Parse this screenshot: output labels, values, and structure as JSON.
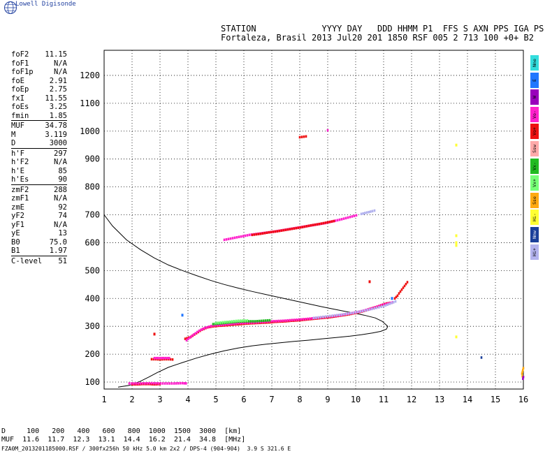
{
  "logo": {
    "text": "Lowell Digisonde",
    "icon": "globe-icon"
  },
  "header": {
    "line1": "STATION             YYYY DAY   DDD HHMM P1  FFS S AXN PPS IGA PS",
    "line2": "Fortaleza, Brasil 2013 Jul20 201 1850 RSF 005 2 713 100 +0+ B2"
  },
  "params": [
    [
      {
        "k": "foF2",
        "v": "11.15"
      },
      {
        "k": "foF1",
        "v": "N/A"
      },
      {
        "k": "foF1p",
        "v": "N/A"
      },
      {
        "k": "foE",
        "v": "2.91"
      },
      {
        "k": "foEp",
        "v": "2.75"
      },
      {
        "k": "fxI",
        "v": "11.55"
      },
      {
        "k": "foEs",
        "v": "3.25"
      },
      {
        "k": "fmin",
        "v": "1.85"
      }
    ],
    [
      {
        "k": "MUF",
        "v": "34.78"
      },
      {
        "k": "M",
        "v": "3.119"
      },
      {
        "k": "D",
        "v": "3000"
      }
    ],
    [
      {
        "k": "h'F",
        "v": "297"
      },
      {
        "k": "h'F2",
        "v": "N/A"
      },
      {
        "k": "h'E",
        "v": "85"
      },
      {
        "k": "h'Es",
        "v": "90"
      }
    ],
    [
      {
        "k": "zmF2",
        "v": "288"
      },
      {
        "k": "zmF1",
        "v": "N/A"
      },
      {
        "k": "zmE",
        "v": "92"
      },
      {
        "k": "yF2",
        "v": "74"
      },
      {
        "k": "yF1",
        "v": "N/A"
      },
      {
        "k": "yE",
        "v": "13"
      },
      {
        "k": "B0",
        "v": "75.0"
      },
      {
        "k": "B1",
        "v": "1.97"
      }
    ],
    [
      {
        "k": "C-level",
        "v": "51"
      }
    ]
  ],
  "legend": [
    {
      "label": "Nne",
      "color": "#33dddd"
    },
    {
      "label": "E",
      "color": "#2277ff"
    },
    {
      "label": "W",
      "color": "#9900bb"
    },
    {
      "label": "Vo-",
      "color": "#ff22cc"
    },
    {
      "label": "Vo+",
      "color": "#ee1111"
    },
    {
      "label": "Ssw",
      "color": "#ffaaaa"
    },
    {
      "label": "Vx-",
      "color": "#22bb22"
    },
    {
      "label": "Vx+",
      "color": "#77ff77"
    },
    {
      "label": "Sse",
      "color": "#ffaa11"
    },
    {
      "label": "Hi-",
      "color": "#ffff33"
    },
    {
      "label": "Nnw",
      "color": "#1a3f9a"
    },
    {
      "label": "Hi+",
      "color": "#b3b3ee"
    }
  ],
  "footer": {
    "line1": "D     100   200   400   600   800  1000  1500  3000  [km]",
    "line2": "MUF  11.6  11.7  12.3  13.1  14.4  16.2  21.4  34.8  [MHz]",
    "line3": "FZA0M_2013201185000.RSF / 300fx256h 50 kHz 5.0 km 2x2 / DPS-4 (904-904)  3.9 S 321.6 E"
  },
  "chart_data": {
    "type": "scatter",
    "title": "",
    "xlabel": "",
    "ylabel": "",
    "xlim": [
      1,
      16
    ],
    "ylim": [
      75,
      1290
    ],
    "grid": true,
    "x_ticks": [
      1,
      2,
      3,
      4,
      5,
      6,
      7,
      8,
      9,
      10,
      11,
      12,
      13,
      14,
      15,
      16
    ],
    "y_ticks": [
      100,
      200,
      300,
      400,
      500,
      600,
      700,
      800,
      900,
      1000,
      1100,
      1200
    ],
    "profile": [
      [
        1.0,
        700
      ],
      [
        1.3,
        660
      ],
      [
        1.8,
        610
      ],
      [
        2.3,
        575
      ],
      [
        2.8,
        545
      ],
      [
        3.3,
        520
      ],
      [
        3.8,
        500
      ],
      [
        4.3,
        482
      ],
      [
        4.8,
        465
      ],
      [
        5.3,
        450
      ],
      [
        5.8,
        437
      ],
      [
        6.3,
        425
      ],
      [
        6.8,
        414
      ],
      [
        7.3,
        403
      ],
      [
        7.8,
        392
      ],
      [
        8.3,
        381
      ],
      [
        8.8,
        370
      ],
      [
        9.3,
        360
      ],
      [
        9.8,
        350
      ],
      [
        10.3,
        340
      ],
      [
        10.7,
        330
      ],
      [
        10.95,
        318
      ],
      [
        11.15,
        300
      ],
      [
        11.1,
        290
      ],
      [
        10.9,
        282
      ],
      [
        10.6,
        276
      ],
      [
        10.2,
        270
      ],
      [
        9.8,
        265
      ],
      [
        9.3,
        260
      ],
      [
        8.8,
        255
      ],
      [
        8.3,
        250
      ],
      [
        7.8,
        246
      ],
      [
        7.3,
        241
      ],
      [
        6.8,
        236
      ],
      [
        6.3,
        230
      ],
      [
        5.8,
        222
      ],
      [
        5.3,
        212
      ],
      [
        4.8,
        200
      ],
      [
        4.3,
        186
      ],
      [
        3.8,
        170
      ],
      [
        3.3,
        153
      ],
      [
        2.9,
        134
      ],
      [
        2.6,
        118
      ],
      [
        2.3,
        103
      ],
      [
        1.9,
        88
      ],
      [
        1.5,
        82
      ]
    ],
    "traces": [
      {
        "color": "#ee1111",
        "points": [
          [
            2.0,
            92
          ],
          [
            2.2,
            92
          ],
          [
            2.4,
            93
          ],
          [
            2.6,
            93
          ],
          [
            2.8,
            92
          ],
          [
            3.0,
            93
          ],
          [
            3.1,
            92
          ]
        ]
      },
      {
        "color": "#ff22cc",
        "points": [
          [
            1.9,
            95
          ],
          [
            2.3,
            95
          ],
          [
            2.7,
            96
          ],
          [
            3.1,
            95
          ],
          [
            3.5,
            95
          ],
          [
            3.8,
            96
          ],
          [
            4.0,
            95
          ]
        ]
      },
      {
        "color": "#ee1111",
        "points": [
          [
            2.7,
            182
          ],
          [
            2.85,
            182
          ],
          [
            3.0,
            181
          ],
          [
            3.15,
            182
          ],
          [
            3.3,
            182
          ],
          [
            3.45,
            181
          ],
          [
            3.55,
            182
          ]
        ]
      },
      {
        "color": "#ff22cc",
        "points": [
          [
            2.8,
            186
          ],
          [
            3.0,
            186
          ],
          [
            3.2,
            186
          ],
          [
            3.4,
            186
          ]
        ]
      },
      {
        "color": "#ee1111",
        "points": [
          [
            3.9,
            255
          ],
          [
            4.1,
            262
          ],
          [
            4.3,
            275
          ],
          [
            4.5,
            288
          ],
          [
            4.7,
            296
          ],
          [
            4.9,
            300
          ],
          [
            5.1,
            302
          ],
          [
            5.3,
            303
          ],
          [
            5.5,
            305
          ],
          [
            5.7,
            307
          ],
          [
            5.9,
            308
          ],
          [
            6.1,
            310
          ],
          [
            6.3,
            311
          ],
          [
            6.5,
            312
          ],
          [
            6.7,
            313
          ],
          [
            6.9,
            314
          ],
          [
            7.1,
            316
          ],
          [
            7.3,
            317
          ],
          [
            7.5,
            318
          ],
          [
            7.7,
            320
          ],
          [
            7.9,
            321
          ],
          [
            8.1,
            323
          ],
          [
            8.3,
            325
          ],
          [
            8.5,
            327
          ],
          [
            8.7,
            329
          ],
          [
            8.9,
            331
          ],
          [
            9.1,
            333
          ],
          [
            9.3,
            336
          ],
          [
            9.5,
            339
          ],
          [
            9.7,
            342
          ],
          [
            9.9,
            346
          ],
          [
            10.1,
            350
          ],
          [
            10.3,
            355
          ],
          [
            10.5,
            362
          ],
          [
            10.7,
            368
          ],
          [
            10.9,
            375
          ],
          [
            11.1,
            382
          ],
          [
            11.3,
            385
          ]
        ]
      },
      {
        "color": "#ff22cc",
        "points": [
          [
            3.95,
            250
          ],
          [
            4.2,
            270
          ],
          [
            4.4,
            284
          ],
          [
            4.6,
            294
          ],
          [
            4.9,
            303
          ],
          [
            5.2,
            305
          ],
          [
            5.5,
            308
          ],
          [
            5.8,
            311
          ],
          [
            6.2,
            313
          ],
          [
            6.6,
            315
          ],
          [
            7.0,
            318
          ],
          [
            7.4,
            320
          ],
          [
            7.8,
            323
          ],
          [
            8.2,
            326
          ],
          [
            8.6,
            330
          ],
          [
            9.0,
            334
          ],
          [
            9.4,
            339
          ],
          [
            9.8,
            346
          ],
          [
            10.2,
            354
          ],
          [
            10.6,
            365
          ],
          [
            11.0,
            378
          ],
          [
            11.4,
            388
          ]
        ]
      },
      {
        "color": "#22bb22",
        "points": [
          [
            4.9,
            308
          ],
          [
            5.2,
            311
          ],
          [
            5.5,
            314
          ],
          [
            5.8,
            317
          ],
          [
            6.1,
            318
          ],
          [
            6.4,
            318
          ],
          [
            6.7,
            320
          ],
          [
            7.0,
            322
          ]
        ]
      },
      {
        "color": "#77ff77",
        "points": [
          [
            5.0,
            312
          ],
          [
            5.4,
            316
          ],
          [
            5.8,
            320
          ],
          [
            6.2,
            321
          ]
        ]
      },
      {
        "color": "#b3b3ee",
        "points": [
          [
            8.5,
            330
          ],
          [
            9.0,
            336
          ],
          [
            9.5,
            342
          ],
          [
            10.0,
            350
          ],
          [
            10.5,
            360
          ],
          [
            11.0,
            372
          ],
          [
            11.5,
            392
          ]
        ]
      },
      {
        "color": "#ee1111",
        "points": [
          [
            11.4,
            400
          ],
          [
            11.5,
            410
          ],
          [
            11.55,
            418
          ],
          [
            11.9,
            465
          ]
        ]
      },
      {
        "color": "#ff22cc",
        "points": [
          [
            5.3,
            610
          ],
          [
            5.6,
            616
          ],
          [
            5.9,
            622
          ],
          [
            6.2,
            628
          ],
          [
            6.5,
            632
          ],
          [
            6.8,
            636
          ],
          [
            7.1,
            640
          ],
          [
            7.4,
            645
          ],
          [
            7.7,
            650
          ],
          [
            8.0,
            655
          ],
          [
            8.3,
            660
          ],
          [
            8.6,
            665
          ],
          [
            8.9,
            670
          ],
          [
            9.2,
            677
          ],
          [
            9.5,
            684
          ],
          [
            9.8,
            692
          ],
          [
            10.1,
            700
          ]
        ]
      },
      {
        "color": "#ee1111",
        "points": [
          [
            6.3,
            628
          ],
          [
            6.6,
            632
          ],
          [
            6.9,
            637
          ],
          [
            7.2,
            641
          ],
          [
            7.5,
            646
          ],
          [
            7.8,
            651
          ],
          [
            8.1,
            656
          ],
          [
            8.4,
            662
          ],
          [
            8.7,
            667
          ],
          [
            9.0,
            673
          ],
          [
            9.3,
            679
          ]
        ]
      },
      {
        "color": "#b3b3ee",
        "points": [
          [
            10.2,
            703
          ],
          [
            10.4,
            708
          ],
          [
            10.6,
            713
          ],
          [
            10.75,
            717
          ]
        ]
      },
      {
        "color": "#ee1111",
        "points": [
          [
            8.0,
            978
          ],
          [
            8.15,
            980
          ],
          [
            8.3,
            982
          ]
        ]
      },
      {
        "color": "#ff22cc",
        "points": [
          [
            9.0,
            1003
          ],
          [
            9.1,
            1004
          ]
        ]
      },
      {
        "color": "#ffff33",
        "points": [
          [
            13.6,
            950
          ],
          [
            13.6,
            625
          ],
          [
            13.6,
            600
          ],
          [
            13.6,
            590
          ],
          [
            13.6,
            262
          ]
        ]
      },
      {
        "color": "#1a3f9a",
        "points": [
          [
            14.5,
            188
          ],
          [
            14.55,
            178
          ]
        ]
      },
      {
        "color": "#ffaa11",
        "points": [
          [
            16.0,
            150
          ],
          [
            15.95,
            130
          ],
          [
            15.98,
            112
          ]
        ]
      },
      {
        "color": "#9900bb",
        "points": [
          [
            16.0,
            118
          ],
          [
            15.97,
            106
          ]
        ]
      },
      {
        "color": "#2277ff",
        "points": [
          [
            3.8,
            340
          ],
          [
            11.3,
            400
          ]
        ]
      },
      {
        "color": "#ee1111",
        "points": [
          [
            2.8,
            272
          ],
          [
            10.5,
            460
          ]
        ]
      }
    ]
  }
}
